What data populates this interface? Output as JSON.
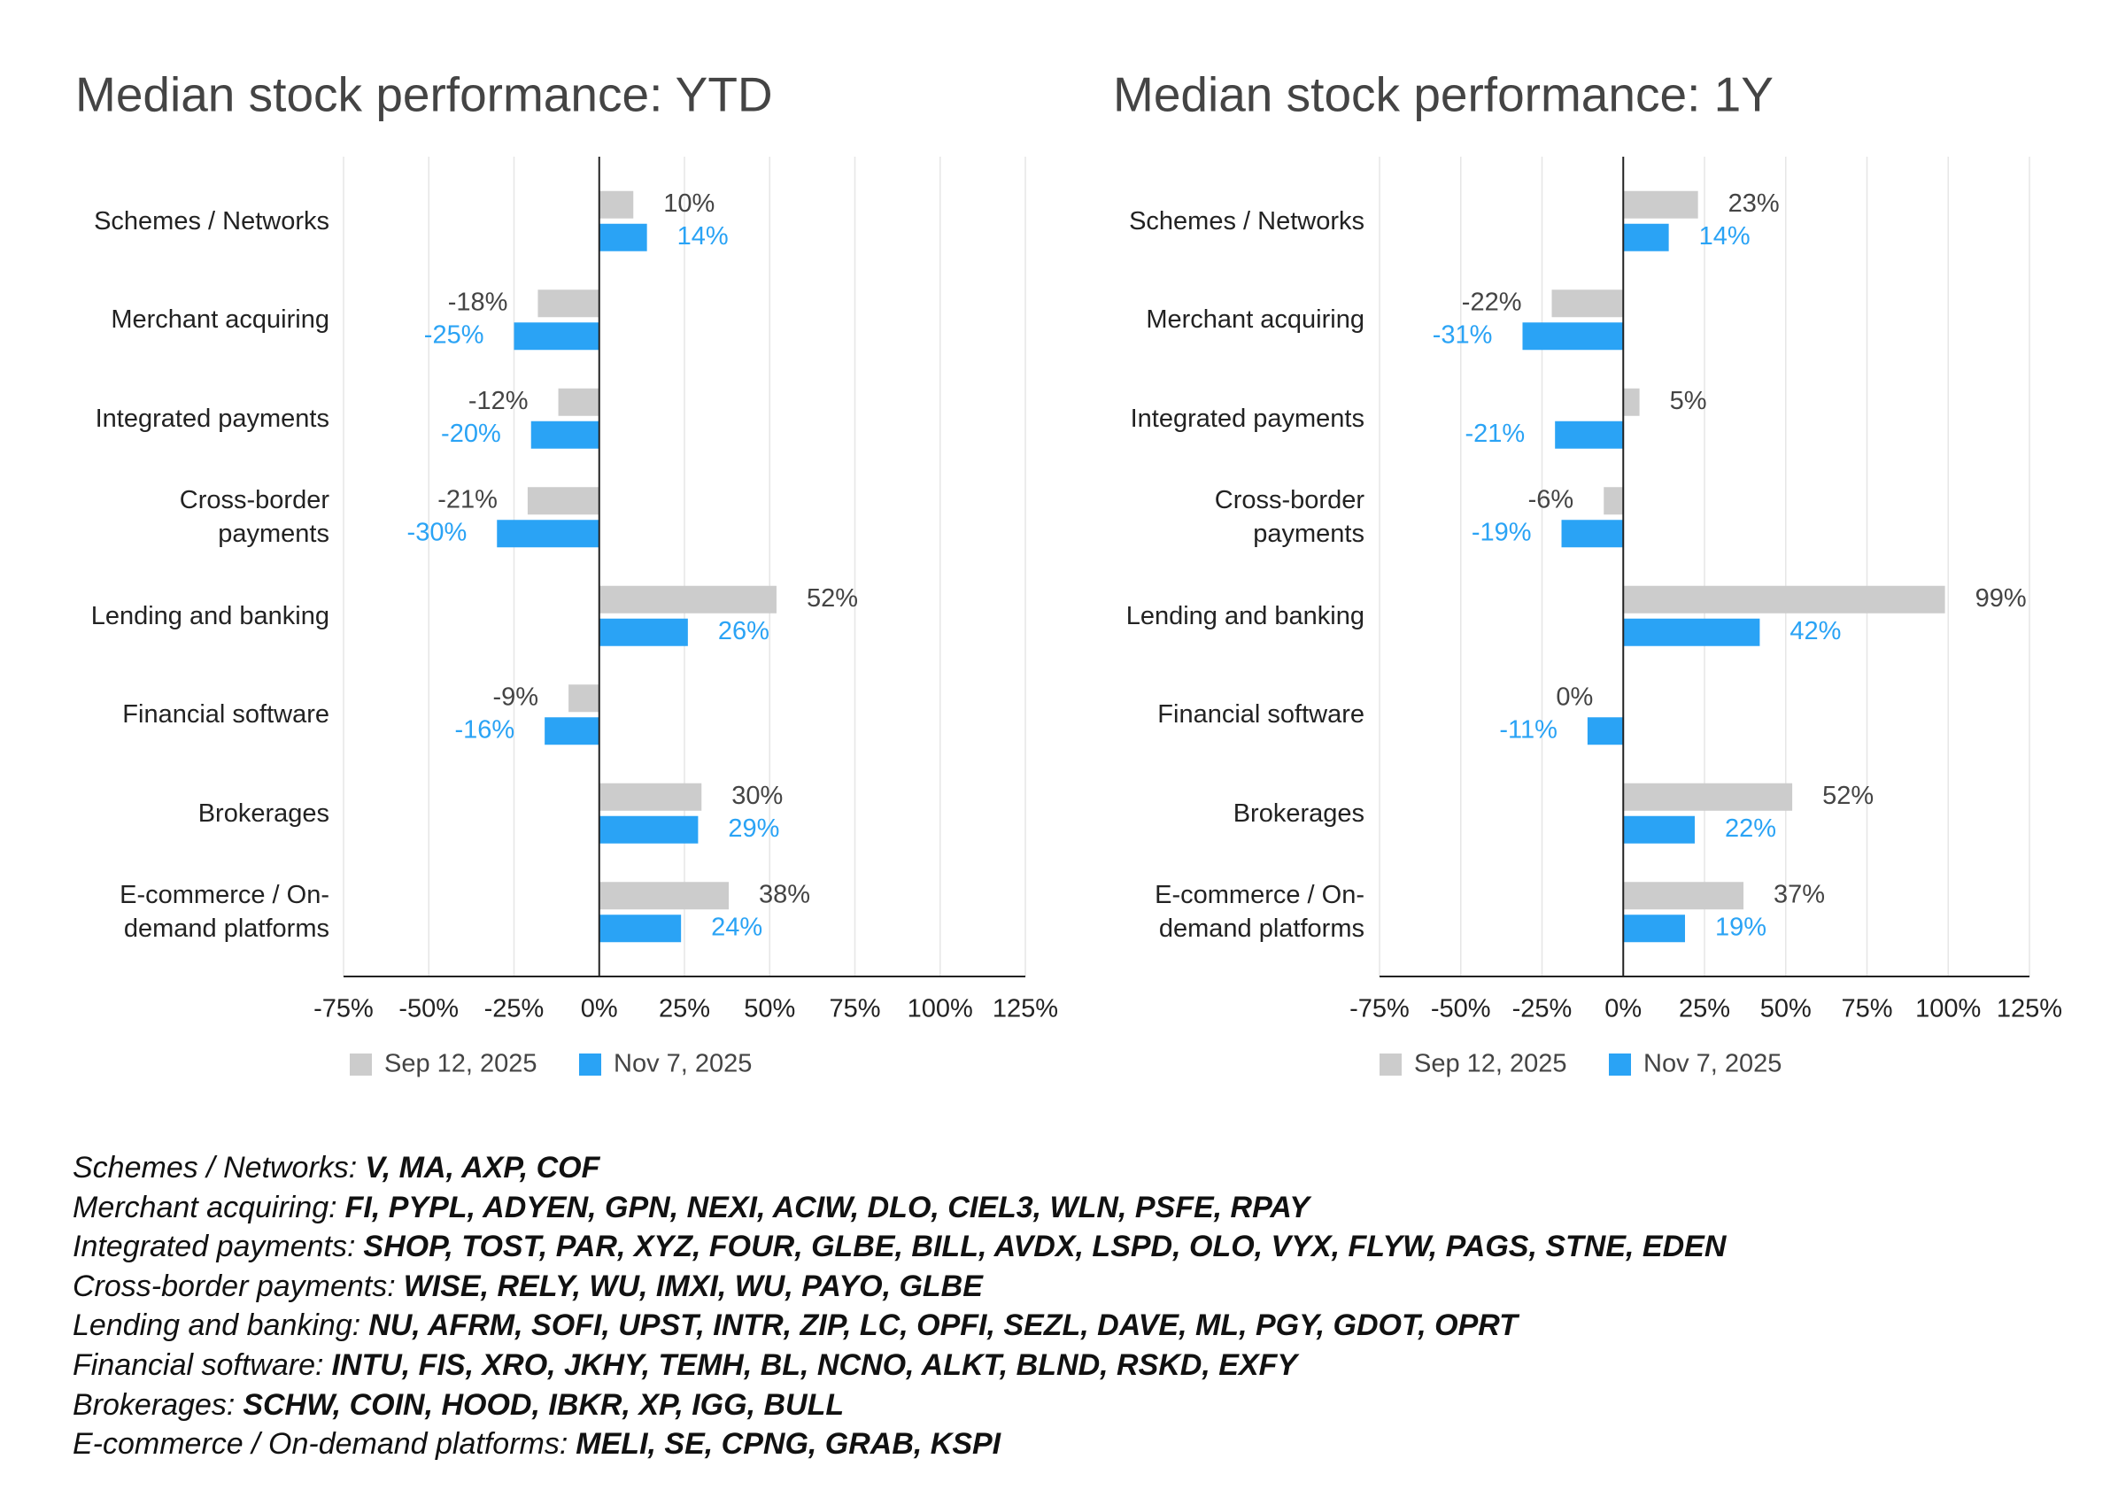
{
  "chart_data": [
    {
      "type": "hbar",
      "title": "Median stock performance: YTD",
      "categories": [
        "Schemes / Networks",
        "Merchant acquiring",
        "Integrated payments",
        "Cross-border payments",
        "Lending and banking",
        "Financial software",
        "Brokerages",
        "E-commerce / On-demand platforms"
      ],
      "series": [
        {
          "name": "Sep 12, 2025",
          "color": "#cccccc",
          "label_color": "#444444",
          "values": [
            10,
            -18,
            -12,
            -21,
            52,
            -9,
            30,
            38
          ],
          "value_labels": [
            "10%",
            "-18%",
            "-12%",
            "-21%",
            "52%",
            "-9%",
            "30%",
            "38%"
          ]
        },
        {
          "name": "Nov 7, 2025",
          "color": "#2aa3f5",
          "label_color": "#2aa3f5",
          "values": [
            14,
            -25,
            -20,
            -30,
            26,
            -16,
            29,
            24
          ],
          "value_labels": [
            "14%",
            "-25%",
            "-20%",
            "-30%",
            "26%",
            "-16%",
            "29%",
            "24%"
          ]
        }
      ],
      "xlim": [
        -75,
        125
      ],
      "xticks": [
        {
          "value": -75,
          "label": "-75%"
        },
        {
          "value": -50,
          "label": "-50%"
        },
        {
          "value": -25,
          "label": "-25%"
        },
        {
          "value": 0,
          "label": "0%"
        },
        {
          "value": 25,
          "label": "25%"
        },
        {
          "value": 50,
          "label": "50%"
        },
        {
          "value": 75,
          "label": "75%"
        },
        {
          "value": 100,
          "label": "100%"
        },
        {
          "value": 125,
          "label": "125%"
        }
      ],
      "grid": true,
      "legend": "bottom"
    },
    {
      "type": "hbar",
      "title": "Median stock performance: 1Y",
      "categories": [
        "Schemes / Networks",
        "Merchant acquiring",
        "Integrated payments",
        "Cross-border payments",
        "Lending and banking",
        "Financial software",
        "Brokerages",
        "E-commerce / On-demand platforms"
      ],
      "series": [
        {
          "name": "Sep 12, 2025",
          "color": "#cccccc",
          "label_color": "#444444",
          "values": [
            23,
            -22,
            5,
            -6,
            99,
            0,
            52,
            37
          ],
          "value_labels": [
            "23%",
            "-22%",
            "5%",
            "-6%",
            "99%",
            "0%",
            "52%",
            "37%"
          ]
        },
        {
          "name": "Nov 7, 2025",
          "color": "#2aa3f5",
          "label_color": "#2aa3f5",
          "values": [
            14,
            -31,
            -21,
            -19,
            42,
            -11,
            22,
            19
          ],
          "value_labels": [
            "14%",
            "-31%",
            "-21%",
            "-19%",
            "42%",
            "-11%",
            "22%",
            "19%"
          ]
        }
      ],
      "xlim": [
        -75,
        125
      ],
      "xticks": [
        {
          "value": -75,
          "label": "-75%"
        },
        {
          "value": -50,
          "label": "-50%"
        },
        {
          "value": -25,
          "label": "-25%"
        },
        {
          "value": 0,
          "label": "0%"
        },
        {
          "value": 25,
          "label": "25%"
        },
        {
          "value": 50,
          "label": "50%"
        },
        {
          "value": 75,
          "label": "75%"
        },
        {
          "value": 100,
          "label": "100%"
        },
        {
          "value": 125,
          "label": "125%"
        }
      ],
      "grid": true,
      "legend": "bottom"
    }
  ],
  "notes": [
    {
      "group": "Schemes / Networks:",
      "tickers": "V, MA, AXP, COF"
    },
    {
      "group": "Merchant acquiring:",
      "tickers": "FI, PYPL, ADYEN, GPN, NEXI, ACIW, DLO, CIEL3, WLN, PSFE, RPAY"
    },
    {
      "group": "Integrated payments:",
      "tickers": "SHOP, TOST, PAR, XYZ, FOUR, GLBE, BILL, AVDX, LSPD, OLO, VYX, FLYW, PAGS, STNE, EDEN"
    },
    {
      "group": "Cross-border payments:",
      "tickers": "WISE, RELY, WU, IMXI, WU, PAYO, GLBE"
    },
    {
      "group": "Lending and banking:",
      "tickers": "NU, AFRM, SOFI, UPST, INTR, ZIP, LC, OPFI, SEZL, DAVE, ML, PGY, GDOT, OPRT"
    },
    {
      "group": "Financial software:",
      "tickers": "INTU, FIS, XRO, JKHY, TEMH, BL, NCNO, ALKT, BLND, RSKD, EXFY"
    },
    {
      "group": "Brokerages:",
      "tickers": "SCHW, COIN, HOOD, IBKR, XP, IGG, BULL"
    },
    {
      "group": "E-commerce / On-demand platforms:",
      "tickers": "MELI, SE, CPNG, GRAB, KSPI"
    }
  ]
}
